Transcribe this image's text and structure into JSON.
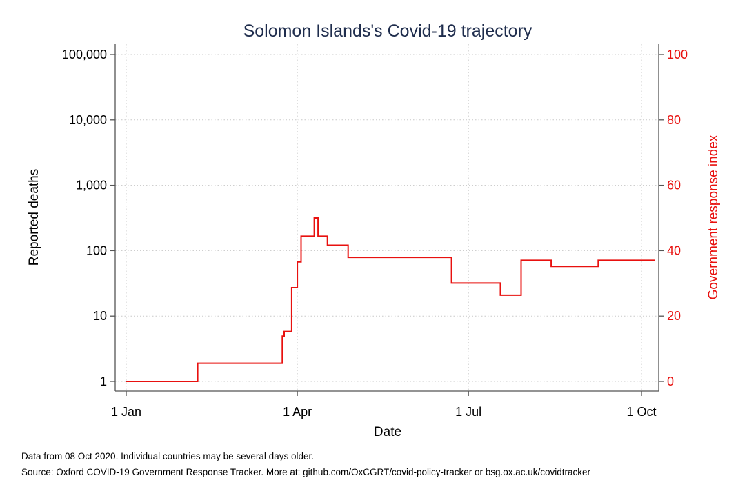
{
  "chart_data": {
    "type": "line",
    "title": "Solomon Islands's Covid-19 trajectory",
    "xlabel": "Date",
    "ylabel": "Reported deaths",
    "y2label": "Government response index",
    "x_ticks": [
      {
        "date": "2020-01-01",
        "label": "1 Jan"
      },
      {
        "date": "2020-04-01",
        "label": "1 Apr"
      },
      {
        "date": "2020-07-01",
        "label": "1 Jul"
      },
      {
        "date": "2020-10-01",
        "label": "1 Oct"
      }
    ],
    "xlim": [
      "2020-01-01",
      "2020-10-08"
    ],
    "y_left": {
      "scale": "log",
      "ylim": [
        1,
        100000
      ],
      "ticks": [
        {
          "value": 1,
          "label": "1"
        },
        {
          "value": 10,
          "label": "10"
        },
        {
          "value": 100,
          "label": "100"
        },
        {
          "value": 1000,
          "label": "1,000"
        },
        {
          "value": 10000,
          "label": "10,000"
        },
        {
          "value": 100000,
          "label": "100,000"
        }
      ]
    },
    "y_right": {
      "scale": "linear",
      "ylim": [
        0,
        100
      ],
      "ticks": [
        0,
        20,
        40,
        60,
        80,
        100
      ]
    },
    "grid": true,
    "series": [
      {
        "axis": "right",
        "color": "#e8110f",
        "step": true,
        "points": [
          {
            "date": "2020-01-01",
            "value": 0
          },
          {
            "date": "2020-02-08",
            "value": 5.56
          },
          {
            "date": "2020-03-24",
            "value": 13.89
          },
          {
            "date": "2020-03-25",
            "value": 15.28
          },
          {
            "date": "2020-03-27",
            "value": 15.28
          },
          {
            "date": "2020-03-28",
            "value": 15.28
          },
          {
            "date": "2020-03-29",
            "value": 28.7
          },
          {
            "date": "2020-03-30",
            "value": 28.7
          },
          {
            "date": "2020-04-01",
            "value": 36.57
          },
          {
            "date": "2020-04-03",
            "value": 44.44
          },
          {
            "date": "2020-04-10",
            "value": 50.0
          },
          {
            "date": "2020-04-12",
            "value": 44.44
          },
          {
            "date": "2020-04-17",
            "value": 41.67
          },
          {
            "date": "2020-04-28",
            "value": 37.96
          },
          {
            "date": "2020-06-22",
            "value": 30.09
          },
          {
            "date": "2020-07-18",
            "value": 26.39
          },
          {
            "date": "2020-07-29",
            "value": 37.04
          },
          {
            "date": "2020-08-14",
            "value": 35.19
          },
          {
            "date": "2020-09-08",
            "value": 37.04
          },
          {
            "date": "2020-10-08",
            "value": 37.04
          }
        ]
      }
    ]
  },
  "footnotes": {
    "data_note": "Data from 08 Oct 2020. Individual countries may be several days older.",
    "source_note": "Source: Oxford COVID-19 Government Response Tracker. More at: github.com/OxCGRT/covid-policy-tracker or bsg.ox.ac.uk/covidtracker"
  }
}
